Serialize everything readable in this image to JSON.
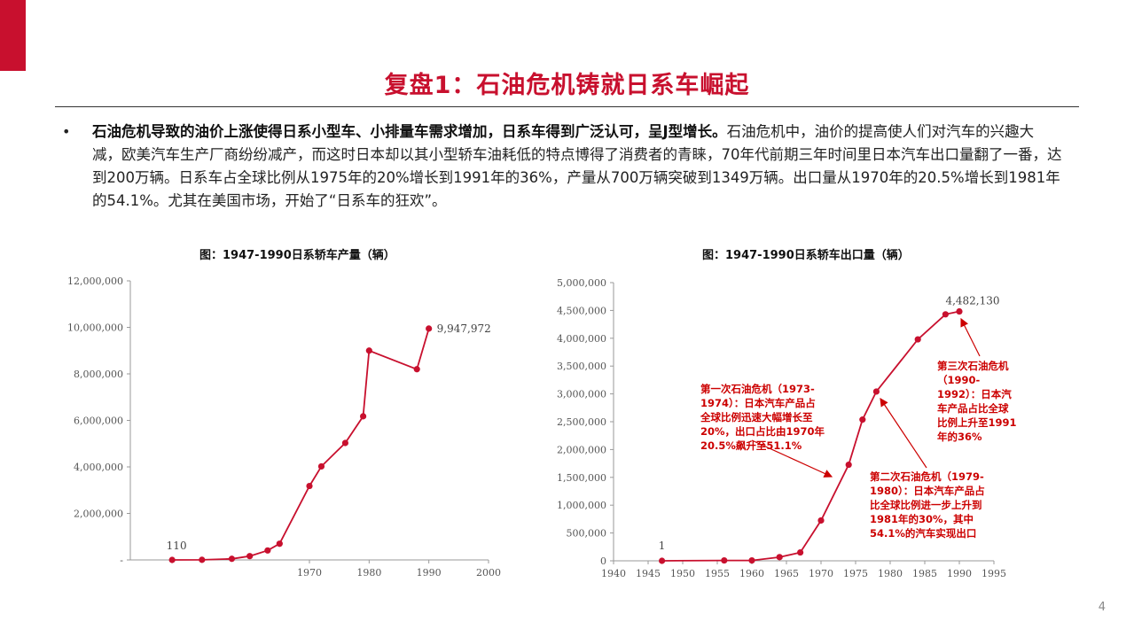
{
  "slide": {
    "title": "复盘1：石油危机铸就日系车崛起",
    "bullet_symbol": "•",
    "bold_text": "石油危机导致的油价上涨使得日系小型车、小排量车需求增加，日系车得到广泛认可，呈J型增长。",
    "body_text": "石油危机中，油价的提高使人们对汽车的兴趣大减，欧美汽车生产厂商纷纷减产，而这时日本却以其小型轿车油耗低的特点博得了消费者的青睐，70年代前期三年时间里日本汽车出口量翻了一番，达到200万辆。日系车占全球比例从1975年的20%增长到1991年的36%，产量从700万辆突破到1349万辆。出口量从1970年的20.5%增长到1981年的54.1%。尤其在美国市场，开始了“日系车的狂欢”。",
    "page_number": "4",
    "accent_color": "#c8102e",
    "line_color": "#c8102e"
  },
  "chart_data": [
    {
      "type": "line",
      "title": "图：1947-1990日系轿车产量（辆）",
      "x": [
        1947,
        1952,
        1957,
        1960,
        1963,
        1965,
        1970,
        1972,
        1976,
        1979,
        1980,
        1988,
        1990
      ],
      "values": [
        110,
        4800,
        47000,
        165000,
        408000,
        696000,
        3179000,
        4022000,
        5028000,
        6176000,
        9000000,
        8200000,
        9947972
      ],
      "xlim": [
        1940,
        2000
      ],
      "ylim": [
        0,
        12000000
      ],
      "xticks": [
        1970,
        1980,
        1990,
        2000
      ],
      "xtick_labels": [
        "1970",
        "1980",
        "1990",
        "2000"
      ],
      "yticks": [
        0,
        2000000,
        4000000,
        6000000,
        8000000,
        10000000,
        12000000
      ],
      "ytick_labels": [
        "-",
        "2,000,000",
        "4,000,000",
        "6,000,000",
        "8,000,000",
        "10,000,000",
        "12,000,000"
      ],
      "data_labels": [
        {
          "index": 0,
          "text": "110"
        },
        {
          "index": 12,
          "text": "9,947,972"
        }
      ],
      "grid": false
    },
    {
      "type": "line",
      "title": "图：1947-1990日系轿车出口量（辆）",
      "x": [
        1947,
        1956,
        1960,
        1964,
        1967,
        1970,
        1974,
        1976,
        1978,
        1984,
        1988,
        1990
      ],
      "values": [
        1,
        7000,
        7000,
        66000,
        150000,
        725000,
        1727000,
        2538000,
        3042000,
        3980000,
        4430000,
        4482130
      ],
      "xlim": [
        1940,
        1995
      ],
      "ylim": [
        0,
        5000000
      ],
      "xticks": [
        1940,
        1945,
        1950,
        1955,
        1960,
        1965,
        1970,
        1975,
        1980,
        1985,
        1990,
        1995
      ],
      "xtick_labels": [
        "1940",
        "1945",
        "1950",
        "1955",
        "1960",
        "1965",
        "1970",
        "1975",
        "1980",
        "1985",
        "1990",
        "1995"
      ],
      "yticks": [
        0,
        500000,
        1000000,
        1500000,
        2000000,
        2500000,
        3000000,
        3500000,
        4000000,
        4500000,
        5000000
      ],
      "ytick_labels": [
        "0",
        "500,000",
        "1,000,000",
        "1,500,000",
        "2,000,000",
        "2,500,000",
        "3,000,000",
        "3,500,000",
        "4,000,000",
        "4,500,000",
        "5,000,000"
      ],
      "data_labels": [
        {
          "index": 0,
          "text": "1"
        },
        {
          "index": 11,
          "text": "4,482,130"
        }
      ],
      "annotations": [
        {
          "lines": [
            "第一次石油危机（1973-",
            "1974）：日本汽车产品占",
            "全球比例迅速大幅增长至",
            "20%，出口占比由1970年",
            "20.5%飙升至51.1%"
          ]
        },
        {
          "lines": [
            "第二次石油危机（1979-",
            "1980）：日本汽车产品占",
            "比全球比例进一步上升到",
            "1981年的30%，其中",
            "54.1%的汽车实现出口"
          ]
        },
        {
          "lines": [
            "第三次石油危机",
            "（1990-",
            "1992）：日本汽",
            "车产品占比全球",
            "比例上升至1991",
            "年的36%"
          ]
        }
      ],
      "grid": false
    }
  ]
}
